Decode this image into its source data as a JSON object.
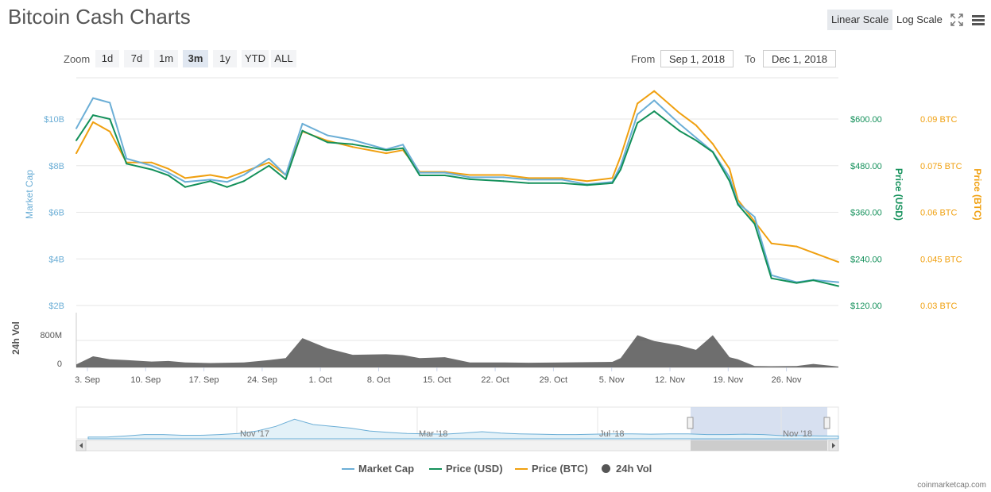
{
  "title": "Bitcoin Cash Charts",
  "scale": {
    "linear": "Linear Scale",
    "log": "Log Scale",
    "active": "linear"
  },
  "icons": {
    "fullscreen": "fullscreen-icon",
    "menu": "hamburger-menu-icon"
  },
  "zoom": {
    "label": "Zoom",
    "options": [
      "1d",
      "7d",
      "1m",
      "3m",
      "1y",
      "YTD",
      "ALL"
    ],
    "active": "3m"
  },
  "range": {
    "from_label": "From",
    "from_value": "Sep 1, 2018",
    "to_label": "To",
    "to_value": "Dec 1, 2018"
  },
  "colors": {
    "market_cap": "#6baed6",
    "price_usd": "#13905a",
    "price_btc": "#f0a010",
    "volume": "#555555"
  },
  "chart_data": {
    "type": "line",
    "x_ticks": [
      "3. Sep",
      "10. Sep",
      "17. Sep",
      "24. Sep",
      "1. Oct",
      "8. Oct",
      "15. Oct",
      "22. Oct",
      "29. Oct",
      "5. Nov",
      "12. Nov",
      "19. Nov",
      "26. Nov"
    ],
    "left_axis": {
      "label": "Market Cap",
      "ticks": [
        "$2B",
        "$4B",
        "$6B",
        "$8B",
        "$10B"
      ],
      "range": [
        2000000000,
        10000000000
      ]
    },
    "right_axis_usd": {
      "label": "Price (USD)",
      "ticks": [
        "$120.00",
        "$240.00",
        "$360.00",
        "$480.00",
        "$600.00"
      ],
      "range": [
        120,
        600
      ]
    },
    "right_axis_btc": {
      "label": "Price (BTC)",
      "ticks": [
        "0.03 BTC",
        "0.045 BTC",
        "0.06 BTC",
        "0.075 BTC",
        "0.09 BTC"
      ],
      "range": [
        0.03,
        0.09
      ]
    },
    "volume_axis": {
      "label": "24h Vol",
      "ticks": [
        "0",
        "800M"
      ],
      "range": [
        0,
        1600000000
      ]
    },
    "x": [
      "2018-09-01",
      "2018-09-03",
      "2018-09-05",
      "2018-09-07",
      "2018-09-10",
      "2018-09-12",
      "2018-09-14",
      "2018-09-17",
      "2018-09-19",
      "2018-09-21",
      "2018-09-24",
      "2018-09-26",
      "2018-09-28",
      "2018-10-01",
      "2018-10-04",
      "2018-10-08",
      "2018-10-10",
      "2018-10-12",
      "2018-10-15",
      "2018-10-18",
      "2018-10-22",
      "2018-10-25",
      "2018-10-29",
      "2018-11-01",
      "2018-11-04",
      "2018-11-05",
      "2018-11-07",
      "2018-11-09",
      "2018-11-12",
      "2018-11-14",
      "2018-11-16",
      "2018-11-18",
      "2018-11-19",
      "2018-11-21",
      "2018-11-23",
      "2018-11-26",
      "2018-11-28",
      "2018-12-01"
    ],
    "series": [
      {
        "name": "Market Cap",
        "axis": "left",
        "values": [
          9600000000,
          10900000000,
          10700000000,
          8300000000,
          8000000000,
          7700000000,
          7300000000,
          7400000000,
          7300000000,
          7600000000,
          8300000000,
          7600000000,
          9800000000,
          9300000000,
          9100000000,
          8700000000,
          8900000000,
          7700000000,
          7700000000,
          7500000000,
          7500000000,
          7400000000,
          7400000000,
          7200000000,
          7300000000,
          8000000000,
          10200000000,
          10800000000,
          9800000000,
          9200000000,
          8600000000,
          7500000000,
          6400000000,
          5800000000,
          3300000000,
          3000000000,
          3100000000,
          3000000000
        ]
      },
      {
        "name": "Price (USD)",
        "axis": "right_usd",
        "values": [
          545,
          610,
          600,
          485,
          470,
          455,
          425,
          440,
          425,
          440,
          480,
          445,
          570,
          540,
          535,
          520,
          525,
          455,
          455,
          445,
          440,
          435,
          435,
          430,
          435,
          470,
          590,
          620,
          570,
          545,
          515,
          440,
          380,
          330,
          190,
          178,
          185,
          170
        ]
      },
      {
        "name": "Price (BTC)",
        "axis": "right_btc",
        "values": [
          0.079,
          0.089,
          0.086,
          0.076,
          0.076,
          0.074,
          0.071,
          0.072,
          0.071,
          0.073,
          0.076,
          0.072,
          0.086,
          0.083,
          0.081,
          0.079,
          0.08,
          0.073,
          0.073,
          0.072,
          0.072,
          0.071,
          0.071,
          0.07,
          0.071,
          0.078,
          0.095,
          0.099,
          0.092,
          0.088,
          0.082,
          0.074,
          0.064,
          0.057,
          0.05,
          0.049,
          0.047,
          0.044
        ]
      },
      {
        "name": "24h Vol",
        "axis": "volume",
        "type": "area",
        "values": [
          100000000,
          380000000,
          280000000,
          250000000,
          200000000,
          220000000,
          170000000,
          150000000,
          160000000,
          170000000,
          250000000,
          320000000,
          1000000000,
          650000000,
          430000000,
          450000000,
          420000000,
          320000000,
          350000000,
          170000000,
          170000000,
          160000000,
          170000000,
          180000000,
          190000000,
          320000000,
          1100000000,
          900000000,
          750000000,
          600000000,
          1100000000,
          350000000,
          280000000,
          50000000,
          40000000,
          50000000,
          120000000,
          30000000
        ]
      }
    ],
    "navigator": {
      "x_labels": [
        "Nov '17",
        "Mar '18",
        "Jul '18",
        "Nov '18"
      ],
      "values": [
        0.05,
        0.05,
        0.08,
        0.12,
        0.12,
        0.1,
        0.1,
        0.12,
        0.15,
        0.22,
        0.35,
        0.55,
        0.4,
        0.35,
        0.3,
        0.22,
        0.18,
        0.15,
        0.14,
        0.13,
        0.16,
        0.2,
        0.16,
        0.14,
        0.13,
        0.12,
        0.12,
        0.13,
        0.14,
        0.14,
        0.13,
        0.14,
        0.14,
        0.12,
        0.12,
        0.13,
        0.12,
        0.09,
        0.09,
        0.08,
        0.08
      ]
    },
    "grid": true,
    "legend_position": "bottom-center"
  },
  "legend": [
    "Market Cap",
    "Price (USD)",
    "Price (BTC)",
    "24h Vol"
  ],
  "credit": "coinmarketcap.com"
}
